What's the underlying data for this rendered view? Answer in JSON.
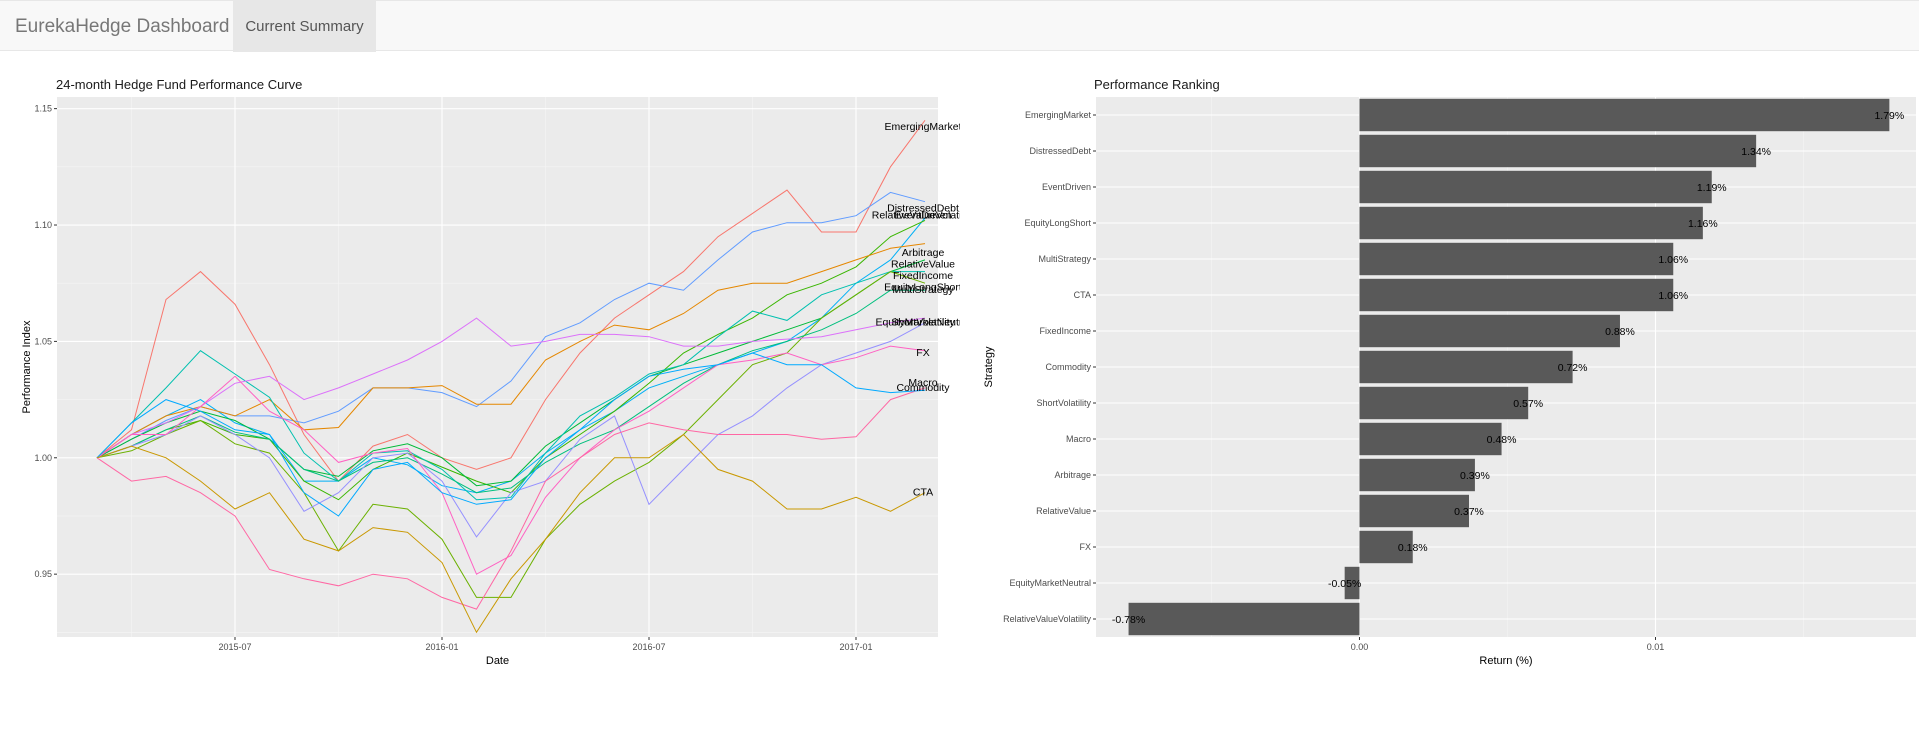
{
  "navbar": {
    "brand": "EurekaHedge Dashboard",
    "tab_current": "Current Summary"
  },
  "colors": {
    "panel_bg": "#ebebeb",
    "grid": "#ffffff",
    "bar": "#595959",
    "navbar_bg": "#f8f8f8",
    "tab_active_bg": "#e7e7e7"
  },
  "chart_data": [
    {
      "type": "line",
      "title": "24-month Hedge Fund Performance Curve",
      "xlabel": "Date",
      "ylabel": "Performance Index",
      "x": [
        "2015-03",
        "2015-04",
        "2015-05",
        "2015-06",
        "2015-07",
        "2015-08",
        "2015-09",
        "2015-10",
        "2015-11",
        "2015-12",
        "2016-01",
        "2016-02",
        "2016-03",
        "2016-04",
        "2016-05",
        "2016-06",
        "2016-07",
        "2016-08",
        "2016-09",
        "2016-10",
        "2016-11",
        "2016-12",
        "2017-01",
        "2017-02",
        "2017-03"
      ],
      "x_ticks": [
        "2015-07",
        "2016-01",
        "2016-07",
        "2017-01"
      ],
      "y_ticks": [
        0.95,
        1.0,
        1.05,
        1.1,
        1.15
      ],
      "ylim": [
        0.923,
        1.155
      ],
      "grid": true,
      "legend": "none (series labeled at line ends)",
      "series": [
        {
          "name": "EmergingMarket",
          "color": "#F8766D",
          "values": [
            1.0,
            1.012,
            1.068,
            1.08,
            1.066,
            1.04,
            1.01,
            0.99,
            1.005,
            1.01,
            1.0,
            0.995,
            1.0,
            1.025,
            1.045,
            1.06,
            1.07,
            1.08,
            1.095,
            1.105,
            1.115,
            1.097,
            1.097,
            1.125,
            1.145
          ]
        },
        {
          "name": "DistressedDebt",
          "color": "#619CFF",
          "values": [
            1.0,
            1.008,
            1.016,
            1.022,
            1.018,
            1.018,
            1.015,
            1.02,
            1.03,
            1.03,
            1.028,
            1.022,
            1.033,
            1.052,
            1.058,
            1.068,
            1.075,
            1.072,
            1.085,
            1.097,
            1.101,
            1.101,
            1.104,
            1.114,
            1.11
          ]
        },
        {
          "name": "RelativeValueVolatility",
          "color": "#00B0F6",
          "values": [
            1.0,
            1.01,
            1.018,
            1.025,
            1.015,
            1.01,
            0.99,
            0.99,
            1.0,
            0.997,
            0.988,
            0.985,
            0.99,
            1.002,
            1.012,
            1.02,
            1.03,
            1.035,
            1.04,
            1.045,
            1.05,
            1.06,
            1.075,
            1.085,
            1.103
          ]
        },
        {
          "name": "EventDriven",
          "color": "#39B600",
          "values": [
            1.0,
            1.005,
            1.012,
            1.016,
            1.01,
            1.008,
            0.99,
            0.982,
            0.995,
            1.002,
            0.996,
            0.99,
            0.985,
            1.0,
            1.01,
            1.02,
            1.032,
            1.045,
            1.053,
            1.06,
            1.07,
            1.075,
            1.082,
            1.095,
            1.102
          ]
        },
        {
          "name": "Arbitrage",
          "color": "#E58700",
          "values": [
            1.0,
            1.01,
            1.018,
            1.022,
            1.018,
            1.025,
            1.012,
            1.013,
            1.03,
            1.03,
            1.031,
            1.023,
            1.023,
            1.042,
            1.05,
            1.057,
            1.055,
            1.062,
            1.072,
            1.075,
            1.075,
            1.08,
            1.085,
            1.09,
            1.092
          ]
        },
        {
          "name": "RelativeValue",
          "color": "#00BA38",
          "values": [
            1.0,
            1.008,
            1.015,
            1.02,
            1.016,
            1.008,
            0.995,
            0.992,
            1.003,
            1.006,
            1.0,
            0.988,
            0.99,
            1.005,
            1.015,
            1.025,
            1.035,
            1.04,
            1.045,
            1.05,
            1.055,
            1.06,
            1.07,
            1.08,
            1.085
          ]
        },
        {
          "name": "FixedIncome",
          "color": "#00C0AF",
          "values": [
            1.0,
            1.015,
            1.03,
            1.046,
            1.036,
            1.026,
            1.002,
            0.99,
            1.002,
            1.003,
            0.995,
            0.982,
            0.983,
            1.002,
            1.018,
            1.026,
            1.036,
            1.04,
            1.052,
            1.063,
            1.059,
            1.07,
            1.075,
            1.08,
            1.08
          ]
        },
        {
          "name": "EquityLongShort",
          "color": "#6BB100",
          "values": [
            1.0,
            1.003,
            1.01,
            1.016,
            1.006,
            1.002,
            0.985,
            0.96,
            0.98,
            0.978,
            0.965,
            0.94,
            0.94,
            0.965,
            0.98,
            0.99,
            0.998,
            1.01,
            1.025,
            1.04,
            1.045,
            1.06,
            1.07,
            1.08,
            1.075
          ]
        },
        {
          "name": "MultiStrategy",
          "color": "#00BF7D",
          "values": [
            1.0,
            1.005,
            1.012,
            1.018,
            1.011,
            1.008,
            0.995,
            0.99,
            0.998,
            1.0,
            0.993,
            0.985,
            0.987,
            0.998,
            1.006,
            1.012,
            1.022,
            1.032,
            1.04,
            1.046,
            1.05,
            1.055,
            1.062,
            1.072,
            1.072
          ]
        },
        {
          "name": "EquityMarketNeutral",
          "color": "#DC71FA",
          "values": [
            1.0,
            1.01,
            1.015,
            1.022,
            1.032,
            1.035,
            1.025,
            1.03,
            1.036,
            1.042,
            1.05,
            1.06,
            1.048,
            1.05,
            1.053,
            1.053,
            1.052,
            1.048,
            1.048,
            1.05,
            1.051,
            1.052,
            1.055,
            1.058,
            1.06
          ]
        },
        {
          "name": "ShortVolatility",
          "color": "#9590FF",
          "values": [
            1.0,
            1.005,
            1.01,
            1.018,
            1.01,
            1.0,
            0.977,
            0.985,
            1.0,
            1.002,
            0.99,
            0.966,
            0.985,
            0.99,
            1.008,
            1.018,
            0.98,
            0.995,
            1.01,
            1.018,
            1.03,
            1.04,
            1.045,
            1.05,
            1.058
          ]
        },
        {
          "name": "FX",
          "color": "#FF61C3",
          "values": [
            1.0,
            1.01,
            1.01,
            1.022,
            1.035,
            1.02,
            1.012,
            0.998,
            1.002,
            1.004,
            0.985,
            0.95,
            0.958,
            0.983,
            1.0,
            1.012,
            1.02,
            1.03,
            1.04,
            1.042,
            1.045,
            1.04,
            1.043,
            1.048,
            1.046
          ]
        },
        {
          "name": "Macro",
          "color": "#FF67A4",
          "values": [
            1.0,
            0.99,
            0.992,
            0.985,
            0.975,
            0.952,
            0.948,
            0.945,
            0.95,
            0.948,
            0.94,
            0.935,
            0.96,
            0.99,
            1.0,
            1.01,
            1.015,
            1.012,
            1.01,
            1.01,
            1.01,
            1.008,
            1.009,
            1.025,
            1.03
          ]
        },
        {
          "name": "Commodity",
          "color": "#00A9FF",
          "values": [
            1.0,
            1.015,
            1.025,
            1.02,
            1.012,
            1.01,
            0.985,
            0.975,
            0.995,
            0.998,
            0.985,
            0.98,
            0.982,
            1.0,
            1.012,
            1.025,
            1.035,
            1.038,
            1.04,
            1.045,
            1.04,
            1.04,
            1.03,
            1.028,
            1.029
          ]
        },
        {
          "name": "CTA",
          "color": "#C99800",
          "values": [
            1.0,
            1.005,
            1.0,
            0.99,
            0.978,
            0.985,
            0.965,
            0.96,
            0.97,
            0.968,
            0.955,
            0.925,
            0.948,
            0.965,
            0.985,
            1.0,
            1.0,
            1.01,
            0.995,
            0.99,
            0.978,
            0.978,
            0.983,
            0.977,
            0.985
          ]
        }
      ],
      "end_labels": [
        {
          "text": "EmergingMarket",
          "y": 1.1425
        },
        {
          "text": "DistressedDebt",
          "y": 1.1075
        },
        {
          "text": "RelativeValueVolatility",
          "y": 1.1045
        },
        {
          "text": "EventDriven",
          "y": 1.1045
        },
        {
          "text": "Arbitrage",
          "y": 1.0885
        },
        {
          "text": "RelativeValue",
          "y": 1.0835
        },
        {
          "text": "FixedIncome",
          "y": 1.0785
        },
        {
          "text": "EquityLongShort",
          "y": 1.0735
        },
        {
          "text": "MultiStrategy",
          "y": 1.0725
        },
        {
          "text": "EquityMarketNeutral",
          "y": 1.0585
        },
        {
          "text": "ShortVolatility",
          "y": 1.0585
        },
        {
          "text": "FX",
          "y": 1.0455
        },
        {
          "text": "Macro",
          "y": 1.0325
        },
        {
          "text": "Commodity",
          "y": 1.0305
        },
        {
          "text": "CTA",
          "y": 0.9855
        }
      ]
    },
    {
      "type": "bar",
      "orientation": "horizontal",
      "title": "Performance Ranking",
      "xlabel": "Return (%)",
      "ylabel": "Strategy",
      "categories": [
        "EmergingMarket",
        "DistressedDebt",
        "EventDriven",
        "EquityLongShort",
        "MultiStrategy",
        "CTA",
        "FixedIncome",
        "Commodity",
        "ShortVolatility",
        "Macro",
        "Arbitrage",
        "RelativeValue",
        "FX",
        "EquityMarketNeutral",
        "RelativeValueVolatility"
      ],
      "values": [
        0.0179,
        0.0134,
        0.0119,
        0.0116,
        0.0106,
        0.0106,
        0.0088,
        0.0072,
        0.0057,
        0.0048,
        0.0039,
        0.0037,
        0.0018,
        -0.0005,
        -0.0078
      ],
      "labels": [
        "1.79%",
        "1.34%",
        "1.19%",
        "1.16%",
        "1.06%",
        "1.06%",
        "0.88%",
        "0.72%",
        "0.57%",
        "0.48%",
        "0.39%",
        "0.37%",
        "0.18%",
        "-0.05%",
        "-0.78%"
      ],
      "x_ticks": [
        0.0,
        0.01
      ],
      "x_tick_labels": [
        "0.00",
        "0.01"
      ],
      "xlim": [
        -0.0089,
        0.0188
      ],
      "grid": true
    }
  ]
}
